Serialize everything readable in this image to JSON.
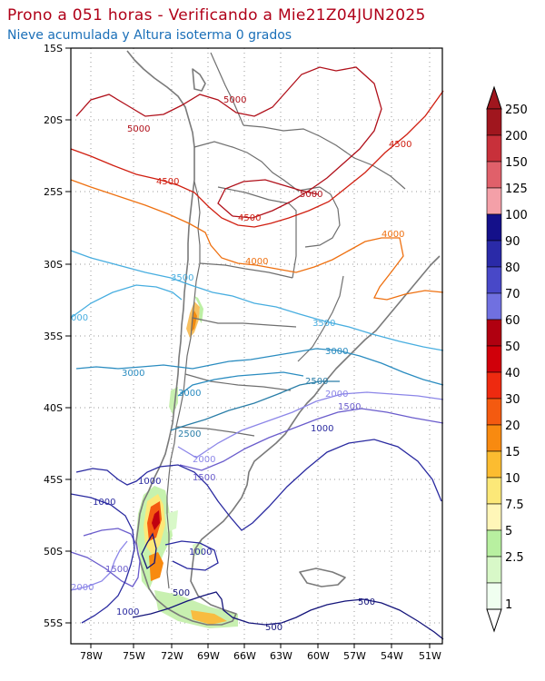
{
  "header": {
    "title": "Prono a 051 horas - Verificando a Mie21Z04JUN2025",
    "subtitle": "Nieve acumulada y Altura isoterma 0 grados"
  },
  "map": {
    "lat_ticks": [
      "15S",
      "20S",
      "25S",
      "30S",
      "35S",
      "40S",
      "45S",
      "50S",
      "55S"
    ],
    "lon_ticks": [
      "78W",
      "75W",
      "72W",
      "69W",
      "66W",
      "63W",
      "60W",
      "57W",
      "54W",
      "51W"
    ],
    "contour_labels": [
      {
        "text": "5000",
        "color": "#b0101a"
      },
      {
        "text": "5000",
        "color": "#b0101a"
      },
      {
        "text": "5000",
        "color": "#b0101a"
      },
      {
        "text": "4500",
        "color": "#d01e10"
      },
      {
        "text": "4500",
        "color": "#d01e10"
      },
      {
        "text": "4500",
        "color": "#d01e10"
      },
      {
        "text": "4000",
        "color": "#ee7010"
      },
      {
        "text": "4000",
        "color": "#ee7010"
      },
      {
        "text": "3500",
        "color": "#48aee0"
      },
      {
        "text": "3500",
        "color": "#48aee0"
      },
      {
        "text": "000",
        "color": "#48aee0"
      },
      {
        "text": "3000",
        "color": "#2a8cc0"
      },
      {
        "text": "3000",
        "color": "#2a8cc0"
      },
      {
        "text": "3000",
        "color": "#2a8cc0"
      },
      {
        "text": "2500",
        "color": "#2a7ea8"
      },
      {
        "text": "2500",
        "color": "#2a7ea8"
      },
      {
        "text": "2000",
        "color": "#8c86e8"
      },
      {
        "text": "2000",
        "color": "#8c86e8"
      },
      {
        "text": "2000",
        "color": "#8c86e8"
      },
      {
        "text": "1500",
        "color": "#6a5ccc"
      },
      {
        "text": "1500",
        "color": "#6a5ccc"
      },
      {
        "text": "1500",
        "color": "#6a5ccc"
      },
      {
        "text": "1000",
        "color": "#2a2aa0"
      },
      {
        "text": "1000",
        "color": "#2a2aa0"
      },
      {
        "text": "1000",
        "color": "#2a2aa0"
      },
      {
        "text": "1000",
        "color": "#2a2aa0"
      },
      {
        "text": "1000",
        "color": "#2a2aa0"
      },
      {
        "text": "500",
        "color": "#14147a"
      },
      {
        "text": "500",
        "color": "#14147a"
      },
      {
        "text": "500",
        "color": "#14147a"
      }
    ]
  },
  "colorbar": {
    "labels": [
      "250",
      "200",
      "150",
      "125",
      "100",
      "90",
      "80",
      "70",
      "60",
      "50",
      "40",
      "30",
      "20",
      "15",
      "10",
      "7.5",
      "5",
      "2.5",
      "1"
    ],
    "colors": [
      "#a0161e",
      "#c8303a",
      "#e0606a",
      "#f4a0a8",
      "#14108a",
      "#2a2aa8",
      "#4848c8",
      "#7070e0",
      "#b00010",
      "#d0000a",
      "#ee2a10",
      "#f45a10",
      "#f88a10",
      "#fcbc30",
      "#fce878",
      "#fff6b8",
      "#b8f0a0",
      "#d8f8c8",
      "#f0fff0"
    ]
  }
}
